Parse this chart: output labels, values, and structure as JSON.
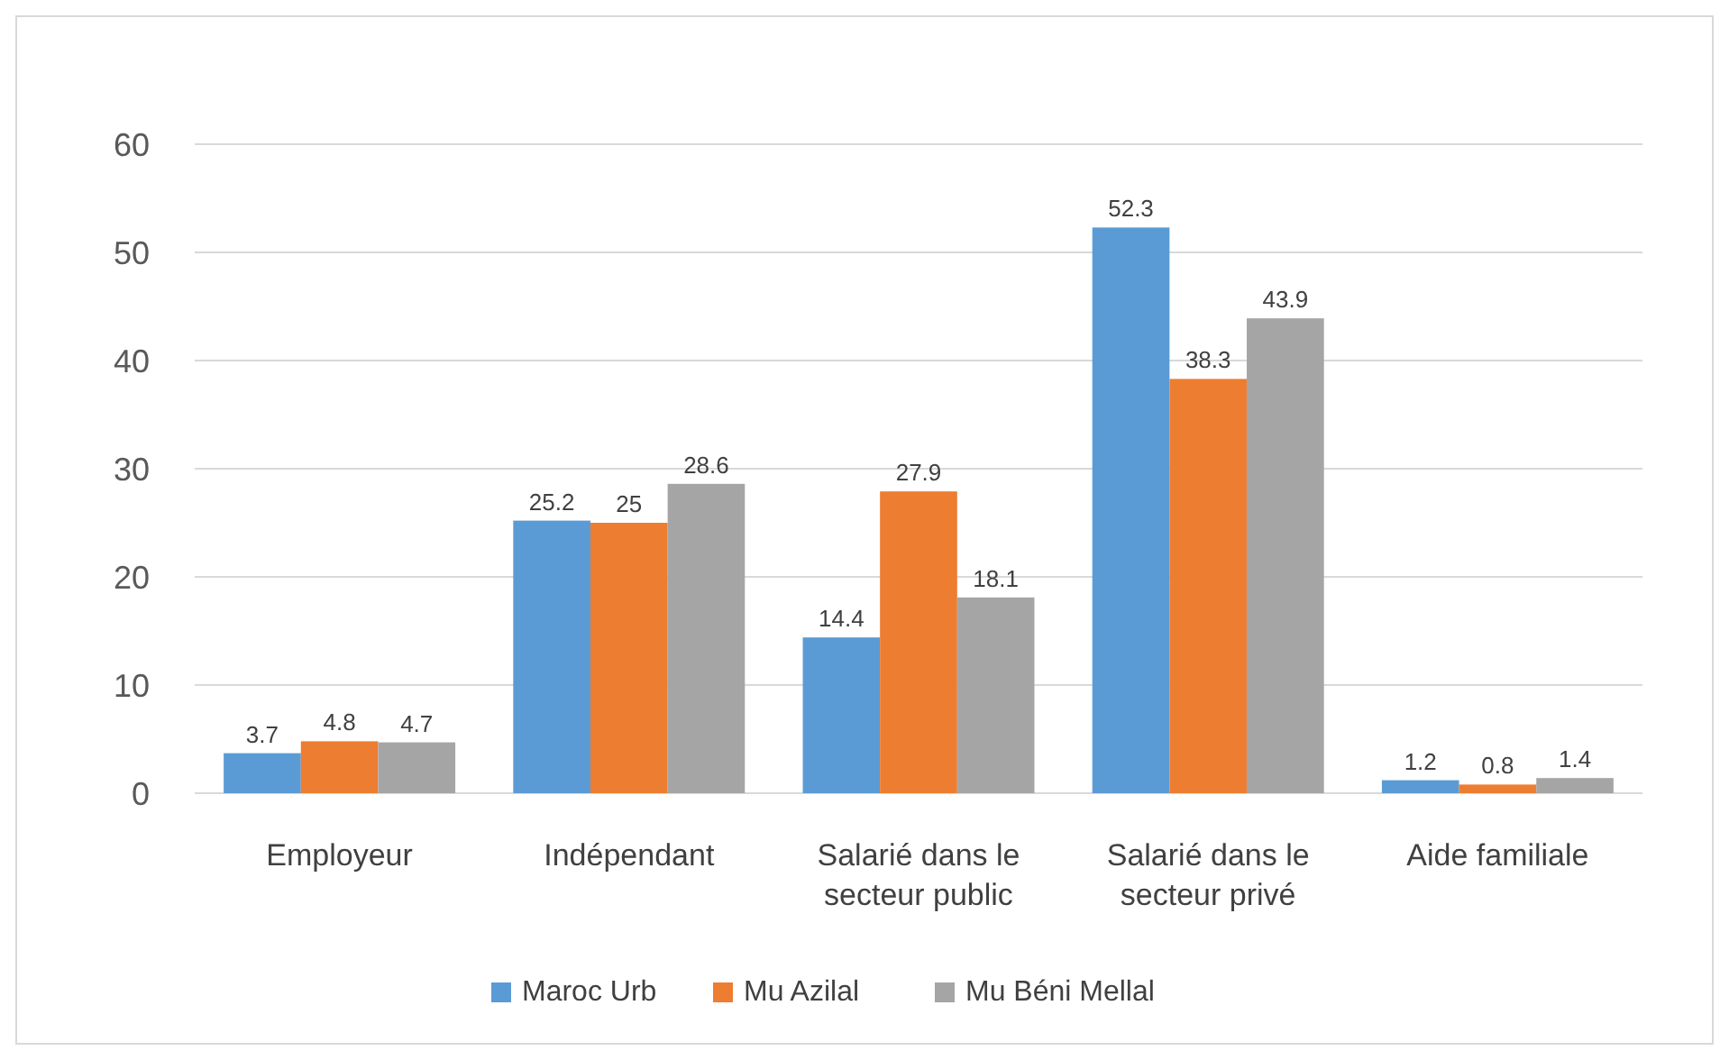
{
  "chart_data": {
    "type": "bar",
    "categories": [
      "Employeur",
      "Indépendant",
      "Salarié dans le secteur public",
      "Salarié dans le secteur privé",
      "Aide familiale"
    ],
    "series": [
      {
        "name": "Maroc Urb",
        "color": "#5b9bd5",
        "values": [
          3.7,
          25.2,
          14.4,
          52.3,
          1.2
        ]
      },
      {
        "name": "Mu Azilal",
        "color": "#ed7d31",
        "values": [
          4.8,
          25,
          27.9,
          38.3,
          0.8
        ]
      },
      {
        "name": "Mu Béni Mellal",
        "color": "#a5a5a5",
        "values": [
          4.7,
          28.6,
          18.1,
          43.9,
          1.4
        ]
      }
    ],
    "ylim": [
      0,
      60
    ],
    "yticks": [
      0,
      10,
      20,
      30,
      40,
      50,
      60
    ],
    "grid": "y",
    "legend": "bottom",
    "data_labels": true
  }
}
